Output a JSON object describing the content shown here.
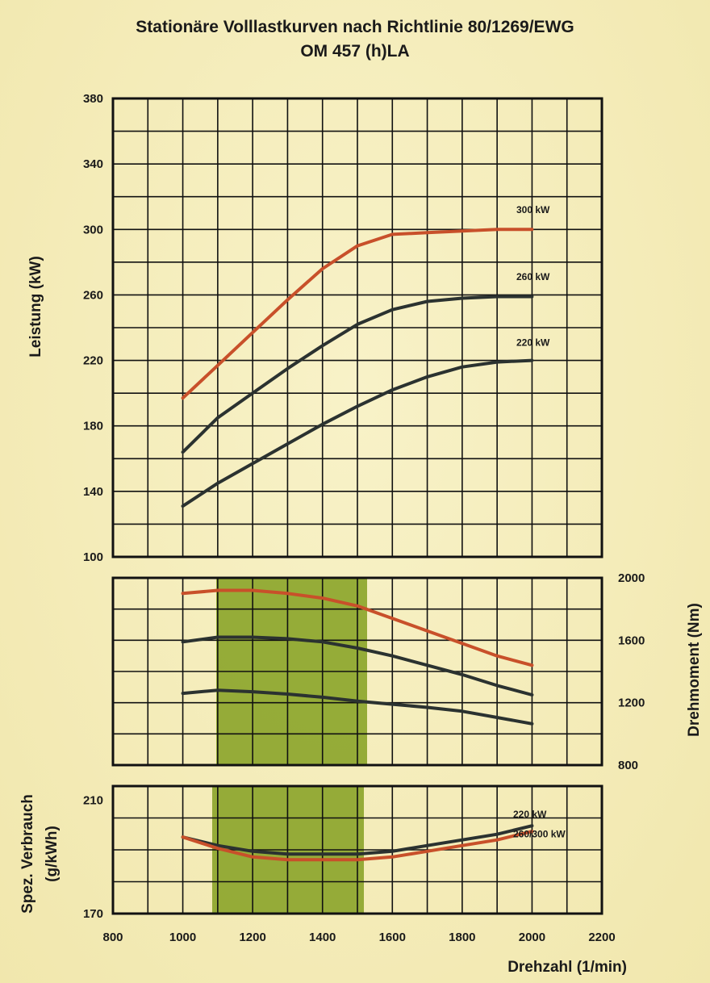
{
  "title_line1": "Stationäre Volllastkurven nach Richtlinie 80/1269/EWG",
  "title_line2": "OM 457 (h)LA",
  "colors": {
    "red": "#c8502a",
    "dark": "#2b3230",
    "green": "#8fa830",
    "grid": "#111111"
  },
  "chart_data": [
    {
      "type": "line",
      "xlabel": "Drehzahl (1/min)",
      "ylabel": "Leistung (kW)",
      "xlim": [
        800,
        2200
      ],
      "ylim": [
        100,
        380
      ],
      "yticks": [
        100,
        140,
        180,
        220,
        260,
        300,
        340,
        380
      ],
      "grid": true,
      "series": [
        {
          "name": "300 kW",
          "color": "red",
          "x": [
            1000,
            1100,
            1200,
            1300,
            1400,
            1500,
            1600,
            1700,
            1800,
            1900,
            2000
          ],
          "y": [
            197,
            217,
            237,
            257,
            276,
            290,
            297,
            298,
            299,
            300,
            300
          ]
        },
        {
          "name": "260 kW",
          "color": "dark",
          "x": [
            1000,
            1100,
            1200,
            1300,
            1400,
            1500,
            1600,
            1700,
            1800,
            1900,
            2000
          ],
          "y": [
            164,
            185,
            200,
            215,
            229,
            242,
            251,
            256,
            258,
            259,
            259
          ]
        },
        {
          "name": "220 kW",
          "color": "dark",
          "x": [
            1000,
            1100,
            1200,
            1300,
            1400,
            1500,
            1600,
            1700,
            1800,
            1900,
            2000
          ],
          "y": [
            131,
            145,
            157,
            169,
            181,
            192,
            202,
            210,
            216,
            219,
            220
          ]
        }
      ]
    },
    {
      "type": "line",
      "ylabel": "Drehmoment (Nm)",
      "xlim": [
        800,
        2200
      ],
      "ylim": [
        800,
        2000
      ],
      "yticks": [
        800,
        1200,
        1600,
        2000
      ],
      "grid": true,
      "band": [
        1100,
        1500
      ],
      "series": [
        {
          "color": "red",
          "x": [
            1000,
            1100,
            1200,
            1300,
            1400,
            1500,
            1600,
            1700,
            1800,
            1900,
            2000
          ],
          "y": [
            1900,
            1920,
            1920,
            1900,
            1870,
            1820,
            1740,
            1660,
            1580,
            1500,
            1440
          ]
        },
        {
          "color": "dark",
          "x": [
            1000,
            1100,
            1200,
            1300,
            1400,
            1500,
            1600,
            1700,
            1800,
            1900,
            2000
          ],
          "y": [
            1590,
            1620,
            1620,
            1610,
            1590,
            1550,
            1500,
            1440,
            1380,
            1310,
            1250
          ]
        },
        {
          "color": "dark",
          "x": [
            1000,
            1100,
            1200,
            1300,
            1400,
            1500,
            1600,
            1700,
            1800,
            1900,
            2000
          ],
          "y": [
            1260,
            1280,
            1270,
            1255,
            1235,
            1210,
            1190,
            1170,
            1145,
            1105,
            1065
          ]
        }
      ]
    },
    {
      "type": "line",
      "xlabel": "Drehzahl (1/min)",
      "ylabel": "Spez. Verbrauch (g/kWh)",
      "xlim": [
        800,
        2200
      ],
      "xticks": [
        800,
        1000,
        1200,
        1400,
        1600,
        1800,
        2000,
        2200
      ],
      "ylim": [
        170,
        215
      ],
      "yticks": [
        170,
        210
      ],
      "grid": true,
      "band": [
        1100,
        1500
      ],
      "series": [
        {
          "name": "220 kW",
          "color": "dark",
          "x": [
            1000,
            1100,
            1200,
            1300,
            1400,
            1500,
            1600,
            1700,
            1800,
            1900,
            2000
          ],
          "y": [
            197,
            194,
            192,
            191,
            191,
            191,
            192,
            194,
            196,
            198,
            201
          ]
        },
        {
          "name": "260/300 kW",
          "color": "red",
          "x": [
            1000,
            1100,
            1200,
            1300,
            1400,
            1500,
            1600,
            1700,
            1800,
            1900,
            2000
          ],
          "y": [
            197,
            193,
            190,
            189,
            189,
            189,
            190,
            192,
            194,
            196,
            199
          ]
        }
      ]
    }
  ]
}
